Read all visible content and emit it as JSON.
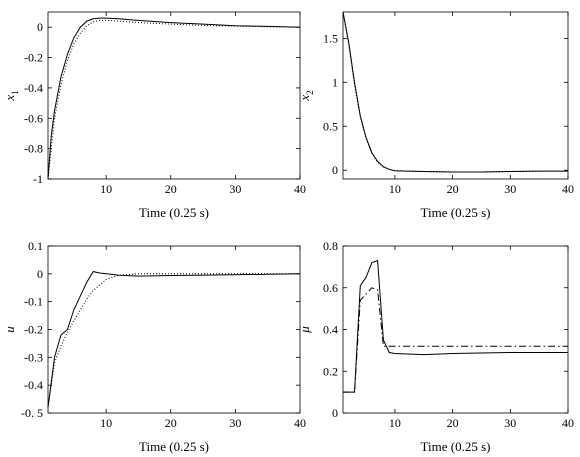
{
  "chart_data": [
    {
      "type": "line",
      "xlabel": "Time (0.25 s)",
      "ylabel": "x",
      "ylabel_sub": "1",
      "xlim": [
        1,
        40
      ],
      "ylim": [
        -1,
        0.1
      ],
      "xticks": [
        10,
        20,
        30,
        40
      ],
      "xtick_labels": [
        "10",
        "20",
        "30",
        "40"
      ],
      "yticks": [
        0,
        -0.2,
        -0.4,
        -0.6,
        -0.8,
        -1
      ],
      "ytick_labels": [
        "0",
        "-0.2",
        "-0.4",
        "-0.6",
        "-0.8",
        "-1"
      ],
      "grid": false,
      "series": [
        {
          "style": "solid",
          "x": [
            1,
            1.5,
            2,
            3,
            4,
            5,
            6,
            7,
            8,
            9,
            10,
            12,
            15,
            20,
            25,
            30,
            35,
            40
          ],
          "y": [
            -1,
            -0.72,
            -0.55,
            -0.33,
            -0.18,
            -0.07,
            0.0,
            0.04,
            0.055,
            0.06,
            0.06,
            0.055,
            0.045,
            0.03,
            0.02,
            0.01,
            0.005,
            0.0
          ]
        },
        {
          "style": "dotted",
          "x": [
            1,
            2,
            3,
            4,
            5,
            6,
            7,
            8,
            9,
            10,
            12,
            15,
            20,
            25,
            30,
            35,
            40
          ],
          "y": [
            -1,
            -0.6,
            -0.38,
            -0.22,
            -0.11,
            -0.04,
            0.01,
            0.035,
            0.045,
            0.045,
            0.04,
            0.03,
            0.02,
            0.012,
            0.007,
            0.003,
            0.0
          ]
        }
      ]
    },
    {
      "type": "line",
      "xlabel": "Time (0.25 s)",
      "ylabel": "x",
      "ylabel_sub": "2",
      "xlim": [
        1,
        40
      ],
      "ylim": [
        -0.1,
        1.8
      ],
      "xticks": [
        10,
        20,
        30,
        40
      ],
      "xtick_labels": [
        "10",
        "20",
        "30",
        "40"
      ],
      "yticks": [
        0,
        0.5,
        1,
        1.5
      ],
      "ytick_labels": [
        "0",
        "0.5",
        "1",
        "1.5"
      ],
      "grid": false,
      "series": [
        {
          "style": "solid",
          "x": [
            1,
            2,
            3,
            4,
            5,
            6,
            7,
            8,
            9,
            10,
            12,
            15,
            20,
            25,
            30,
            35,
            40
          ],
          "y": [
            1.8,
            1.45,
            1.0,
            0.62,
            0.37,
            0.2,
            0.1,
            0.04,
            0.01,
            -0.005,
            -0.01,
            -0.015,
            -0.02,
            -0.02,
            -0.015,
            -0.01,
            -0.01
          ]
        },
        {
          "style": "dotted",
          "x": [
            1,
            2,
            3,
            4,
            5,
            6,
            7,
            8,
            9,
            10,
            12,
            15,
            20,
            25,
            30,
            35,
            40
          ],
          "y": [
            1.8,
            1.42,
            0.97,
            0.6,
            0.36,
            0.19,
            0.09,
            0.035,
            0.01,
            -0.005,
            -0.01,
            -0.015,
            -0.02,
            -0.02,
            -0.015,
            -0.01,
            -0.01
          ]
        }
      ]
    },
    {
      "type": "line",
      "xlabel": "Time (0.25 s)",
      "ylabel": "u",
      "ylabel_sub": "",
      "xlim": [
        1,
        40
      ],
      "ylim": [
        -0.5,
        0.1
      ],
      "xticks": [
        10,
        20,
        30,
        40
      ],
      "xtick_labels": [
        "10",
        "20",
        "30",
        "40"
      ],
      "yticks": [
        0.1,
        0,
        -0.1,
        -0.2,
        -0.3,
        -0.4,
        -0.5
      ],
      "ytick_labels": [
        "0.1",
        "0",
        "-0.1",
        "-0.2",
        "-0.3",
        "-0.4",
        "-0. 5"
      ],
      "grid": false,
      "series": [
        {
          "style": "solid",
          "x": [
            1,
            2,
            3,
            4,
            5,
            6,
            7,
            8,
            9,
            10,
            12,
            15,
            20,
            30,
            40
          ],
          "y": [
            -0.48,
            -0.3,
            -0.22,
            -0.2,
            -0.13,
            -0.08,
            -0.03,
            0.008,
            0.003,
            0.0,
            -0.005,
            -0.008,
            -0.006,
            -0.003,
            0.0
          ]
        },
        {
          "style": "dotted",
          "x": [
            1,
            2,
            3,
            4,
            5,
            6,
            7,
            8,
            9,
            10,
            12,
            15,
            20,
            30,
            40
          ],
          "y": [
            -0.48,
            -0.32,
            -0.26,
            -0.21,
            -0.17,
            -0.13,
            -0.09,
            -0.06,
            -0.04,
            -0.02,
            -0.005,
            0.0,
            0.0,
            0.0,
            0.0
          ]
        }
      ]
    },
    {
      "type": "line",
      "xlabel": "Time (0.25 s)",
      "ylabel": "μ",
      "ylabel_sub": "",
      "xlim": [
        1,
        40
      ],
      "ylim": [
        0,
        0.8
      ],
      "xticks": [
        10,
        20,
        30,
        40
      ],
      "xtick_labels": [
        "10",
        "20",
        "30",
        "40"
      ],
      "yticks": [
        0,
        0.2,
        0.4,
        0.6,
        0.8
      ],
      "ytick_labels": [
        "0",
        "0.2",
        "0.4",
        "0.6",
        "0.8"
      ],
      "grid": false,
      "series": [
        {
          "style": "solid",
          "x": [
            1,
            3,
            4,
            5,
            6,
            7,
            8,
            9,
            10,
            15,
            20,
            30,
            40
          ],
          "y": [
            0.1,
            0.1,
            0.61,
            0.65,
            0.72,
            0.73,
            0.35,
            0.29,
            0.285,
            0.28,
            0.285,
            0.29,
            0.29
          ]
        },
        {
          "style": "dashdot",
          "x": [
            1,
            3,
            4,
            5,
            6,
            7,
            8,
            9,
            10,
            15,
            20,
            30,
            40
          ],
          "y": [
            0.1,
            0.1,
            0.54,
            0.57,
            0.6,
            0.59,
            0.32,
            0.32,
            0.32,
            0.32,
            0.32,
            0.32,
            0.32
          ]
        }
      ]
    }
  ]
}
